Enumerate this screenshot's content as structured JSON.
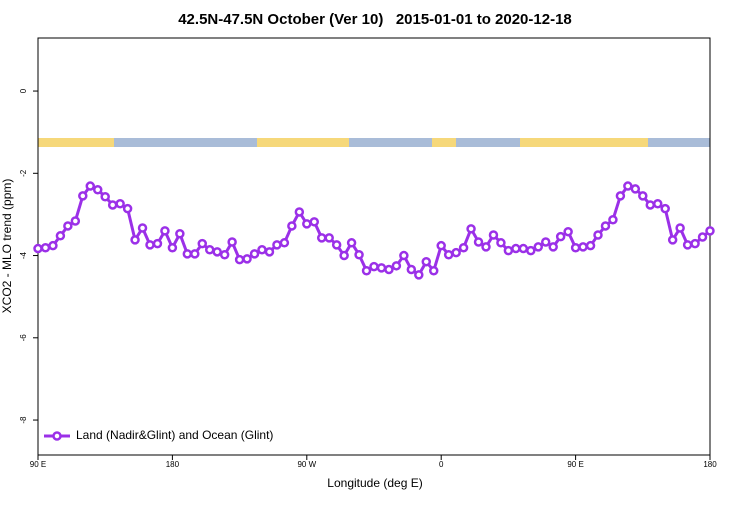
{
  "chart_data": {
    "type": "line",
    "title": "42.5N-47.5N October (Ver 10)   2015-01-01 to 2020-12-18",
    "xlabel": "Longitude (deg E)",
    "ylabel": "XCO2 - MLO trend (ppm)",
    "xlim": [
      90,
      540
    ],
    "ylim": [
      -8.85,
      1.29
    ],
    "xticks": [
      {
        "value": 90,
        "label": "90 E"
      },
      {
        "value": 180,
        "label": "180"
      },
      {
        "value": 270,
        "label": "90 W"
      },
      {
        "value": 360,
        "label": "0"
      },
      {
        "value": 450,
        "label": "90 E"
      },
      {
        "value": 540,
        "label": "180"
      }
    ],
    "yticks": [
      0,
      -2,
      -4,
      -6,
      -8
    ],
    "legend": "bottom-left",
    "x": [
      90,
      95,
      100,
      105,
      110,
      115,
      120,
      125,
      130,
      135,
      140,
      145,
      150,
      155,
      160,
      165,
      170,
      175,
      180,
      185,
      190,
      195,
      200,
      205,
      210,
      215,
      220,
      225,
      230,
      235,
      240,
      245,
      250,
      255,
      260,
      265,
      270,
      275,
      280,
      285,
      290,
      295,
      300,
      305,
      310,
      315,
      320,
      325,
      330,
      335,
      340,
      345,
      350,
      355,
      360,
      365,
      370,
      375,
      380,
      385,
      390,
      395,
      400,
      405,
      410,
      415,
      420,
      425,
      430,
      435,
      440,
      445,
      450,
      455,
      460,
      465,
      470,
      475,
      480,
      485,
      490,
      495,
      500,
      505,
      510,
      515,
      520,
      525,
      530,
      535,
      540
    ],
    "series": [
      {
        "name": "Land (Nadir&Glint) and Ocean (Glint)",
        "color": "#9b30e8",
        "values": [
          -3.83,
          -3.81,
          -3.76,
          -3.52,
          -3.28,
          -3.16,
          -2.55,
          -2.31,
          -2.4,
          -2.57,
          -2.77,
          -2.74,
          -2.86,
          -3.62,
          -3.33,
          -3.74,
          -3.71,
          -3.4,
          -3.81,
          -3.47,
          -3.96,
          -3.96,
          -3.71,
          -3.86,
          -3.91,
          -3.98,
          -3.67,
          -4.1,
          -4.08,
          -3.96,
          -3.86,
          -3.91,
          -3.74,
          -3.69,
          -3.28,
          -2.94,
          -3.23,
          -3.18,
          -3.57,
          -3.57,
          -3.74,
          -4.0,
          -3.69,
          -3.98,
          -4.37,
          -4.27,
          -4.3,
          -4.34,
          -4.25,
          -4.0,
          -4.34,
          -4.47,
          -4.15,
          -4.37,
          -3.76,
          -3.98,
          -3.93,
          -3.81,
          -3.35,
          -3.67,
          -3.79,
          -3.5,
          -3.69,
          -3.88,
          -3.83,
          -3.83,
          -3.88,
          -3.79,
          -3.67,
          -3.79,
          -3.54,
          -3.42,
          -3.81,
          -3.79,
          -3.76,
          -3.5,
          -3.28,
          -3.13,
          -2.55,
          -2.31,
          -2.38,
          -2.55,
          -2.77,
          -2.74,
          -2.86,
          -3.62,
          -3.33,
          -3.74,
          -3.71,
          -3.55,
          -3.4
        ]
      }
    ]
  }
}
